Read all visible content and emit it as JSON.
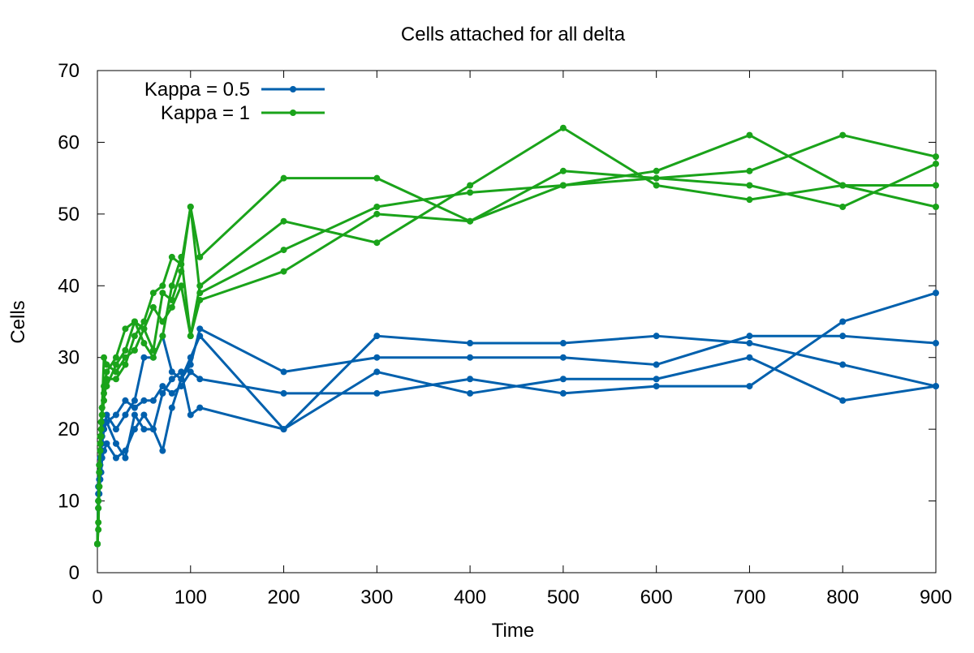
{
  "chart_data": {
    "type": "line",
    "title": "Cells attached for all delta",
    "xlabel": "Time",
    "ylabel": "Cells",
    "xlim": [
      0,
      900
    ],
    "ylim": [
      0,
      70
    ],
    "xticks": [
      0,
      100,
      200,
      300,
      400,
      500,
      600,
      700,
      800,
      900
    ],
    "yticks": [
      0,
      10,
      20,
      30,
      40,
      50,
      60,
      70
    ],
    "grid": false,
    "legend_position": "top-left",
    "legend": [
      {
        "label": "Kappa = 0.5",
        "color": "#0060ad"
      },
      {
        "label": "Kappa = 1",
        "color": "#1aa31a"
      }
    ],
    "series": [
      {
        "name": "Kappa = 0.5",
        "color": "#0060ad",
        "lines": [
          [
            [
              0,
              4
            ],
            [
              1,
              9
            ],
            [
              2,
              11
            ],
            [
              3,
              13
            ],
            [
              4,
              14
            ],
            [
              5,
              16
            ],
            [
              7,
              17
            ],
            [
              10,
              18
            ],
            [
              20,
              16
            ],
            [
              30,
              17
            ],
            [
              40,
              20
            ],
            [
              50,
              22
            ],
            [
              60,
              20
            ],
            [
              70,
              17
            ],
            [
              80,
              23
            ],
            [
              90,
              27
            ],
            [
              100,
              30
            ],
            [
              110,
              33
            ],
            [
              200,
              20
            ],
            [
              300,
              28
            ],
            [
              400,
              25
            ],
            [
              500,
              27
            ],
            [
              600,
              27
            ],
            [
              700,
              30
            ],
            [
              800,
              24
            ],
            [
              900,
              26
            ]
          ],
          [
            [
              0,
              4
            ],
            [
              1,
              10
            ],
            [
              2,
              13
            ],
            [
              3,
              15
            ],
            [
              4,
              17
            ],
            [
              5,
              18
            ],
            [
              7,
              20
            ],
            [
              10,
              21
            ],
            [
              20,
              22
            ],
            [
              30,
              24
            ],
            [
              40,
              23
            ],
            [
              50,
              24
            ],
            [
              60,
              24
            ],
            [
              70,
              26
            ],
            [
              80,
              25
            ],
            [
              90,
              26
            ],
            [
              100,
              28
            ],
            [
              110,
              27
            ],
            [
              200,
              25
            ],
            [
              300,
              25
            ],
            [
              400,
              27
            ],
            [
              500,
              25
            ],
            [
              600,
              26
            ],
            [
              700,
              26
            ],
            [
              800,
              35
            ],
            [
              900,
              39
            ]
          ],
          [
            [
              0,
              4
            ],
            [
              1,
              12
            ],
            [
              2,
              15
            ],
            [
              3,
              17
            ],
            [
              4,
              19
            ],
            [
              5,
              20
            ],
            [
              7,
              21
            ],
            [
              10,
              21
            ],
            [
              20,
              18
            ],
            [
              30,
              16
            ],
            [
              40,
              22
            ],
            [
              50,
              20
            ],
            [
              60,
              20
            ],
            [
              70,
              25
            ],
            [
              80,
              27
            ],
            [
              90,
              28
            ],
            [
              100,
              22
            ],
            [
              110,
              23
            ],
            [
              200,
              20
            ],
            [
              300,
              33
            ],
            [
              400,
              32
            ],
            [
              500,
              32
            ],
            [
              600,
              33
            ],
            [
              700,
              32
            ],
            [
              800,
              29
            ],
            [
              900,
              26
            ]
          ],
          [
            [
              0,
              4
            ],
            [
              1,
              11
            ],
            [
              2,
              14
            ],
            [
              3,
              16
            ],
            [
              4,
              18
            ],
            [
              5,
              19
            ],
            [
              7,
              20
            ],
            [
              10,
              22
            ],
            [
              20,
              20
            ],
            [
              30,
              22
            ],
            [
              40,
              24
            ],
            [
              50,
              30
            ],
            [
              60,
              30
            ],
            [
              70,
              33
            ],
            [
              80,
              28
            ],
            [
              90,
              27
            ],
            [
              100,
              29
            ],
            [
              110,
              34
            ],
            [
              200,
              28
            ],
            [
              300,
              30
            ],
            [
              400,
              30
            ],
            [
              500,
              30
            ],
            [
              600,
              29
            ],
            [
              700,
              33
            ],
            [
              800,
              33
            ],
            [
              900,
              32
            ]
          ]
        ]
      },
      {
        "name": "Kappa = 1",
        "color": "#1aa31a",
        "lines": [
          [
            [
              0,
              4
            ],
            [
              1,
              7
            ],
            [
              2,
              12
            ],
            [
              3,
              18
            ],
            [
              4,
              20
            ],
            [
              5,
              22
            ],
            [
              7,
              24
            ],
            [
              10,
              27
            ],
            [
              20,
              27
            ],
            [
              30,
              29
            ],
            [
              40,
              33
            ],
            [
              50,
              35
            ],
            [
              60,
              39
            ],
            [
              70,
              40
            ],
            [
              80,
              44
            ],
            [
              90,
              43
            ],
            [
              100,
              51
            ],
            [
              110,
              44
            ],
            [
              200,
              55
            ],
            [
              300,
              55
            ],
            [
              400,
              49
            ],
            [
              500,
              54
            ],
            [
              600,
              55
            ],
            [
              700,
              54
            ],
            [
              800,
              51
            ],
            [
              900,
              57
            ]
          ],
          [
            [
              0,
              4
            ],
            [
              1,
              6
            ],
            [
              2,
              12
            ],
            [
              3,
              17
            ],
            [
              4,
              19
            ],
            [
              5,
              22
            ],
            [
              7,
              26
            ],
            [
              10,
              28
            ],
            [
              20,
              30
            ],
            [
              30,
              34
            ],
            [
              40,
              35
            ],
            [
              50,
              32
            ],
            [
              60,
              30
            ],
            [
              70,
              33
            ],
            [
              80,
              40
            ],
            [
              90,
              44
            ],
            [
              100,
              33
            ],
            [
              110,
              40
            ],
            [
              200,
              49
            ],
            [
              300,
              46
            ],
            [
              400,
              54
            ],
            [
              500,
              62
            ],
            [
              600,
              54
            ],
            [
              700,
              52
            ],
            [
              800,
              54
            ],
            [
              900,
              54
            ]
          ],
          [
            [
              0,
              4
            ],
            [
              1,
              10
            ],
            [
              2,
              15
            ],
            [
              3,
              19
            ],
            [
              4,
              21
            ],
            [
              5,
              23
            ],
            [
              7,
              30
            ],
            [
              10,
              29
            ],
            [
              20,
              28
            ],
            [
              30,
              30
            ],
            [
              40,
              31
            ],
            [
              50,
              34
            ],
            [
              60,
              37
            ],
            [
              70,
              35
            ],
            [
              80,
              37
            ],
            [
              90,
              40
            ],
            [
              100,
              33
            ],
            [
              110,
              38
            ],
            [
              200,
              42
            ],
            [
              300,
              50
            ],
            [
              400,
              49
            ],
            [
              500,
              56
            ],
            [
              600,
              55
            ],
            [
              700,
              56
            ],
            [
              800,
              61
            ],
            [
              900,
              58
            ]
          ],
          [
            [
              0,
              4
            ],
            [
              1,
              9
            ],
            [
              2,
              14
            ],
            [
              3,
              18
            ],
            [
              4,
              21
            ],
            [
              5,
              23
            ],
            [
              7,
              25
            ],
            [
              10,
              26
            ],
            [
              20,
              29
            ],
            [
              30,
              31
            ],
            [
              40,
              35
            ],
            [
              50,
              34
            ],
            [
              60,
              31
            ],
            [
              70,
              39
            ],
            [
              80,
              38
            ],
            [
              90,
              42
            ],
            [
              100,
              51
            ],
            [
              110,
              39
            ],
            [
              200,
              45
            ],
            [
              300,
              51
            ],
            [
              400,
              53
            ],
            [
              500,
              54
            ],
            [
              600,
              56
            ],
            [
              700,
              61
            ],
            [
              800,
              54
            ],
            [
              900,
              51
            ]
          ]
        ]
      }
    ]
  }
}
